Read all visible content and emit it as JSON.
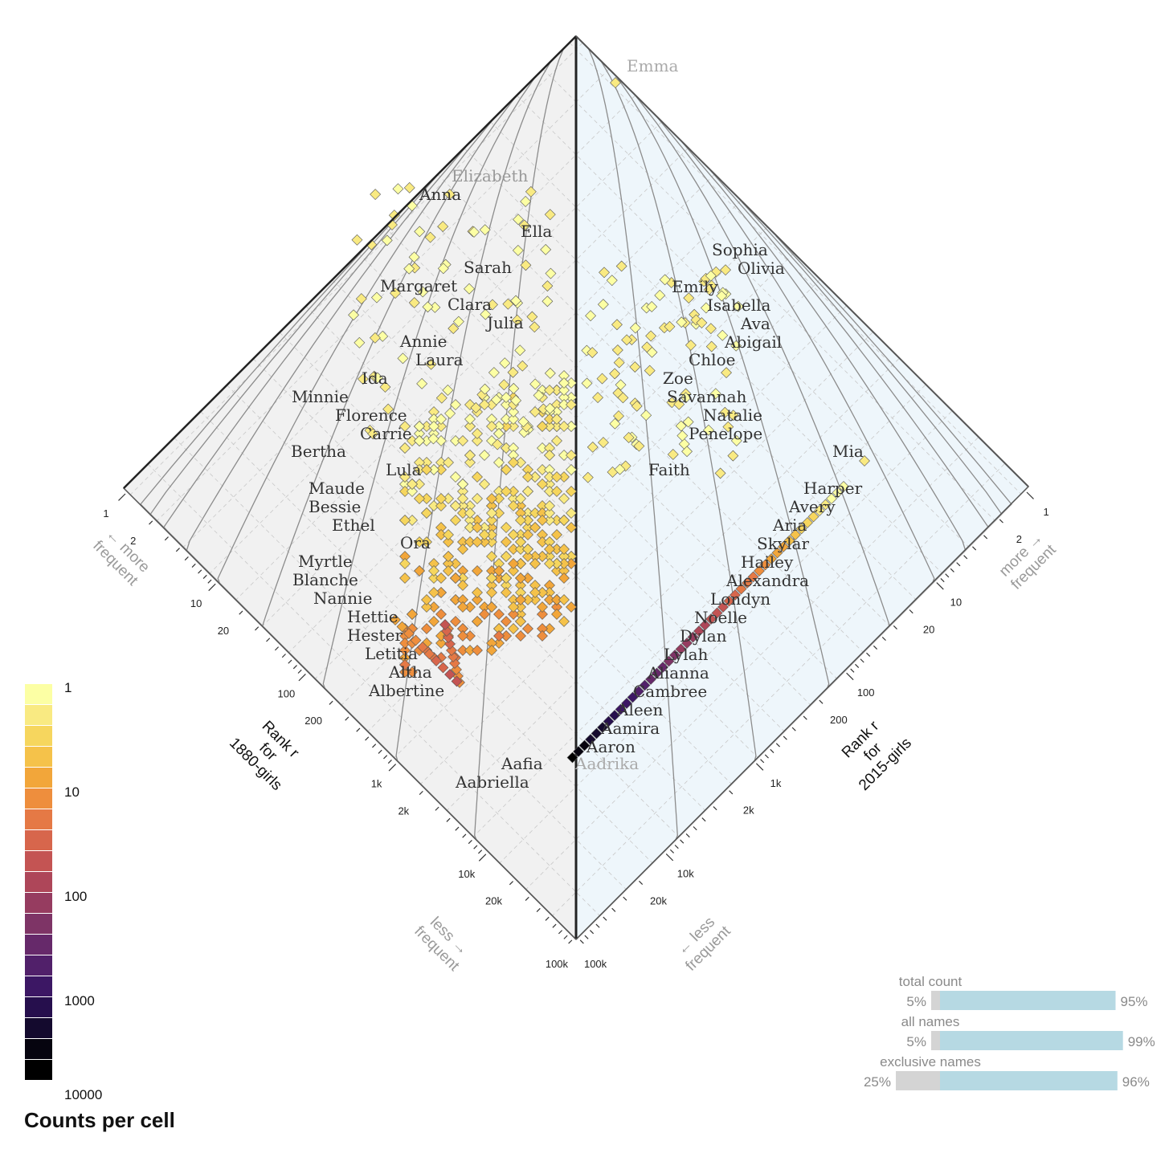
{
  "chart_data": {
    "type": "heatmap",
    "subtype": "rank-turbulence allotaxonograph",
    "left_system": "1880-girls",
    "right_system": "2015-girls",
    "axes": {
      "left": {
        "label_lines": [
          "Rank r",
          "for",
          "1880-girls"
        ],
        "ticks": [
          "1",
          "2",
          "10",
          "20",
          "100",
          "200",
          "1k",
          "2k",
          "10k",
          "20k",
          "100k"
        ],
        "scale": "log10",
        "range": [
          1,
          100000
        ]
      },
      "right": {
        "label_lines": [
          "Rank r",
          "for",
          "2015-girls"
        ],
        "ticks": [
          "1",
          "2",
          "10",
          "20",
          "100",
          "200",
          "1k",
          "2k",
          "10k",
          "20k",
          "100k"
        ],
        "scale": "log10",
        "range": [
          1,
          100000
        ]
      },
      "more_frequent_label": [
        "← more",
        "frequent"
      ],
      "more_frequent_label_right": [
        "more →",
        "frequent"
      ],
      "less_frequent_label": [
        "less →",
        "frequent"
      ],
      "less_frequent_label_right": [
        "← less",
        "frequent"
      ]
    },
    "colors": {
      "left_background": "#f1f1f1",
      "right_background": "#eef6fb",
      "scale": [
        "#fcffa4",
        "#f9ea82",
        "#f6d65e",
        "#f5c24a",
        "#f2a63a",
        "#ee8e3d",
        "#e57945",
        "#d7664c",
        "#c45453",
        "#ae4659",
        "#963c60",
        "#7e3466",
        "#66296a",
        "#51206a",
        "#3c1764",
        "#260f4d",
        "#140a2e",
        "#06040f",
        "#000000"
      ]
    },
    "legend": {
      "title": "Counts per cell",
      "tick_labels": [
        "1",
        "10",
        "100",
        "1000",
        "10000"
      ],
      "scale": "log10",
      "range": [
        1,
        10000
      ]
    },
    "left_names": [
      "Elizabeth",
      "Anna",
      "Ella",
      "Sarah",
      "Margaret",
      "Clara",
      "Julia",
      "Annie",
      "Laura",
      "Ida",
      "Minnie",
      "Florence",
      "Carrie",
      "Bertha",
      "Lula",
      "Maude",
      "Bessie",
      "Ethel",
      "Ora",
      "Myrtle",
      "Blanche",
      "Nannie",
      "Hettie",
      "Hester",
      "Letitia",
      "Altha",
      "Albertine",
      "Aafia",
      "Aabriella"
    ],
    "right_names": [
      "Emma",
      "Sophia",
      "Olivia",
      "Emily",
      "Isabella",
      "Ava",
      "Abigail",
      "Chloe",
      "Zoe",
      "Savannah",
      "Natalie",
      "Penelope",
      "Faith",
      "Mia",
      "Harper",
      "Avery",
      "Aria",
      "Skylar",
      "Hailey",
      "Alexandra",
      "Londyn",
      "Noelle",
      "Dylan",
      "Lylah",
      "Alianna",
      "Cambree",
      "Aleen",
      "Aamira",
      "Aaron",
      "Aadrika"
    ],
    "balance": [
      {
        "label": "total count",
        "left": "5%",
        "right": "95%",
        "left_value": 0.05,
        "right_value": 0.95
      },
      {
        "label": "all names",
        "left": "5%",
        "right": "99%",
        "left_value": 0.05,
        "right_value": 0.99
      },
      {
        "label": "exclusive names",
        "left": "25%",
        "right": "96%",
        "left_value": 0.25,
        "right_value": 0.96
      }
    ]
  }
}
